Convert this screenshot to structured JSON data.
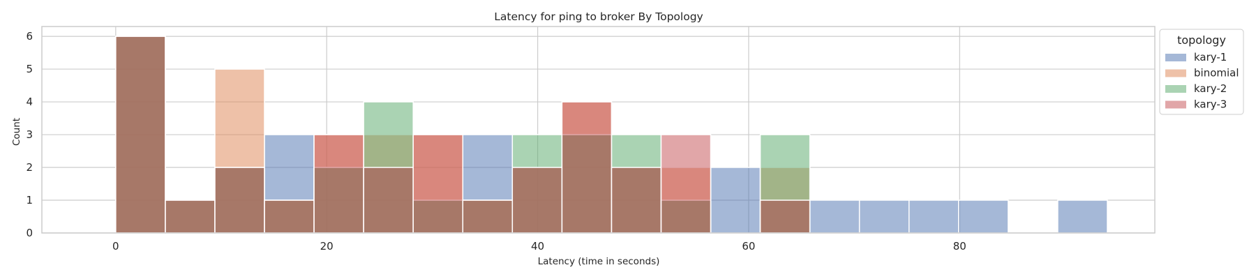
{
  "chart_data": {
    "type": "histogram",
    "title": "Latency for ping to broker By Topology",
    "xlabel": "Latency (time in seconds)",
    "ylabel": "Count",
    "xlim": [
      -7,
      98.5
    ],
    "ylim": [
      0,
      6.3
    ],
    "x_ticks": [
      0,
      20,
      40,
      60,
      80
    ],
    "y_ticks": [
      0,
      1,
      2,
      3,
      4,
      5,
      6
    ],
    "grid": true,
    "legend": {
      "title": "topology",
      "placement": "outside-right"
    },
    "bin_width": 4.7,
    "bin_starts": [
      0,
      4.7,
      9.4,
      14.1,
      18.8,
      23.5,
      28.2,
      32.9,
      37.6,
      42.3,
      47.0,
      51.7,
      56.4,
      61.1,
      65.8,
      70.5,
      75.2,
      79.9,
      84.6,
      89.3
    ],
    "series": [
      {
        "name": "kary-1",
        "color": "#4c72b0",
        "values": [
          6,
          1,
          2,
          3,
          2,
          2,
          1,
          3,
          2,
          3,
          2,
          1,
          2,
          1,
          1,
          1,
          1,
          1,
          0,
          1
        ]
      },
      {
        "name": "binomial",
        "color": "#dd8452",
        "values": [
          6,
          1,
          5,
          1,
          3,
          3,
          3,
          1,
          2,
          4,
          2,
          2,
          0,
          2,
          0,
          0,
          0,
          0,
          0,
          0
        ]
      },
      {
        "name": "kary-2",
        "color": "#55a868",
        "values": [
          6,
          1,
          2,
          1,
          2,
          4,
          1,
          1,
          3,
          3,
          3,
          1,
          0,
          3,
          0,
          0,
          0,
          0,
          0,
          0
        ]
      },
      {
        "name": "kary-3",
        "color": "#c44e52",
        "values": [
          6,
          1,
          2,
          1,
          3,
          2,
          3,
          1,
          2,
          4,
          2,
          3,
          0,
          1,
          0,
          0,
          0,
          0,
          0,
          0
        ]
      }
    ]
  }
}
